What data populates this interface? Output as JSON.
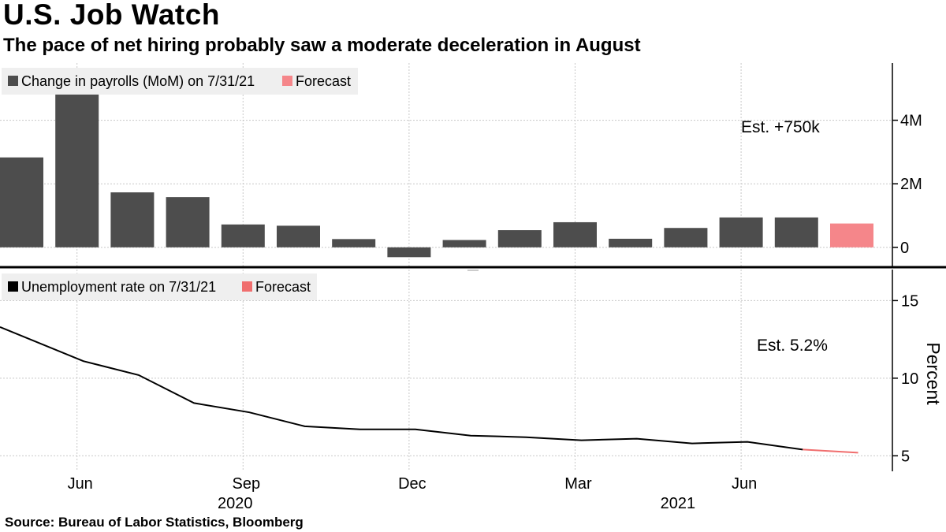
{
  "title": "U.S. Job Watch",
  "subtitle": "The pace of net hiring probably saw a moderate deceleration in August",
  "source": "Source: Bureau of Labor Statistics, Bloomberg",
  "colors": {
    "actual_bar": "#4d4d4d",
    "forecast": "#f5868a",
    "line": "#000000",
    "forecast_line": "#f06e6e",
    "grid": "#c8c8c8"
  },
  "chart_data": [
    {
      "type": "bar",
      "title": "Change in payrolls",
      "legend": [
        {
          "label": "Change in payrolls (MoM) on 7/31/21",
          "color": "#4d4d4d"
        },
        {
          "label": "Forecast",
          "color": "#f5868a"
        }
      ],
      "annotation": "Est. +750k",
      "categories": [
        "2020-05",
        "2020-06",
        "2020-07",
        "2020-08",
        "2020-09",
        "2020-10",
        "2020-11",
        "2020-12",
        "2021-01",
        "2021-02",
        "2021-03",
        "2021-04",
        "2021-05",
        "2021-06",
        "2021-07",
        "2021-08"
      ],
      "values": [
        2.83,
        4.85,
        1.73,
        1.58,
        0.72,
        0.68,
        0.26,
        -0.31,
        0.23,
        0.54,
        0.79,
        0.27,
        0.61,
        0.94,
        0.94,
        0.75
      ],
      "forecast_index": 15,
      "ylim": [
        -0.6,
        5.8
      ],
      "yticks": [
        0,
        2,
        4
      ],
      "ytick_labels": [
        "0",
        "2M",
        "4M"
      ]
    },
    {
      "type": "line",
      "title": "Unemployment rate",
      "ylabel": "Percent",
      "legend": [
        {
          "label": "Unemployment rate on 7/31/21",
          "color": "#000000"
        },
        {
          "label": "Forecast",
          "color": "#f06e6e"
        }
      ],
      "annotation": "Est. 5.2%",
      "x": [
        "2020-05",
        "2020-06",
        "2020-07",
        "2020-08",
        "2020-09",
        "2020-10",
        "2020-11",
        "2020-12",
        "2021-01",
        "2021-02",
        "2021-03",
        "2021-04",
        "2021-05",
        "2021-06",
        "2021-07",
        "2021-08"
      ],
      "values": [
        13.3,
        11.1,
        10.2,
        8.4,
        7.8,
        6.9,
        6.7,
        6.7,
        6.3,
        6.2,
        6.0,
        6.1,
        5.8,
        5.9,
        5.4,
        5.2
      ],
      "forecast_from_index": 14,
      "ylim": [
        4.0,
        17.0
      ],
      "yticks": [
        5,
        10,
        15
      ],
      "ytick_labels": [
        "5",
        "10",
        "15"
      ]
    }
  ],
  "x_axis": {
    "month_labels": [
      {
        "label": "Jun",
        "index": 1
      },
      {
        "label": "Sep",
        "index": 4
      },
      {
        "label": "Dec",
        "index": 7
      },
      {
        "label": "Mar",
        "index": 10
      },
      {
        "label": "Jun",
        "index": 13
      }
    ],
    "year_labels": [
      {
        "label": "2020",
        "index": 4
      },
      {
        "label": "2021",
        "index": 12
      }
    ]
  }
}
